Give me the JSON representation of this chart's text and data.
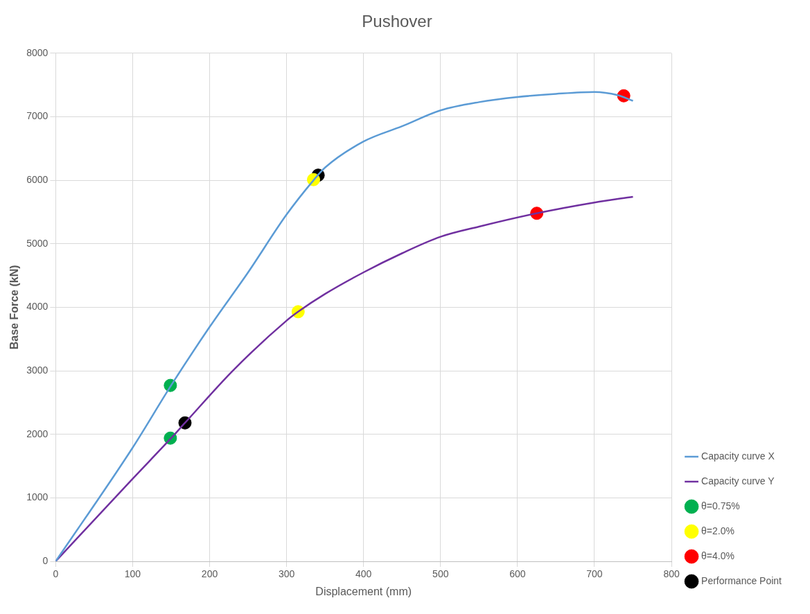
{
  "chart_data": {
    "type": "line",
    "title": "Pushover",
    "xlabel": "Displacement (mm)",
    "ylabel": "Base Force (kN)",
    "xlim": [
      0,
      800
    ],
    "xticks": [
      0,
      100,
      200,
      300,
      400,
      500,
      600,
      700,
      800
    ],
    "ylim": [
      0,
      8000
    ],
    "yticks": [
      0,
      1000,
      2000,
      3000,
      4000,
      5000,
      6000,
      7000,
      8000
    ],
    "grid": true,
    "legend": "bottom right",
    "series": [
      {
        "name": "Capacity curve X",
        "type": "line",
        "marker": "none",
        "color": "#5b9bd5",
        "x": [
          0,
          100,
          150,
          200,
          250,
          300,
          335,
          350,
          400,
          450,
          500,
          550,
          600,
          650,
          700,
          730,
          750
        ],
        "values": [
          0,
          1790,
          2770,
          3690,
          4550,
          5460,
          6000,
          6200,
          6610,
          6850,
          7100,
          7230,
          7310,
          7360,
          7390,
          7340,
          7250
        ]
      },
      {
        "name": "Capacity curve Y",
        "type": "line",
        "marker": "none",
        "color": "#7030a0",
        "x": [
          0,
          100,
          150,
          168,
          230,
          300,
          315,
          350,
          400,
          450,
          500,
          550,
          625,
          700,
          750
        ],
        "values": [
          0,
          1300,
          1940,
          2180,
          3000,
          3790,
          3930,
          4210,
          4550,
          4850,
          5110,
          5270,
          5480,
          5650,
          5740
        ]
      },
      {
        "name": "θ=0.75%",
        "type": "scatter",
        "marker": "circle",
        "color": "#00b050",
        "x": [
          149,
          149
        ],
        "values": [
          2770,
          1940
        ]
      },
      {
        "name": "θ=2.0%",
        "type": "scatter",
        "marker": "circle",
        "color": "#ffff00",
        "x": [
          335,
          315
        ],
        "values": [
          6010,
          3930
        ]
      },
      {
        "name": "θ=4.0%",
        "type": "scatter",
        "marker": "circle",
        "color": "#ff0000",
        "x": [
          738,
          625
        ],
        "values": [
          7330,
          5480
        ]
      },
      {
        "name": "Performance Point",
        "type": "scatter",
        "marker": "circle",
        "color": "#000000",
        "x": [
          341,
          168
        ],
        "values": [
          6080,
          2180
        ]
      }
    ]
  }
}
